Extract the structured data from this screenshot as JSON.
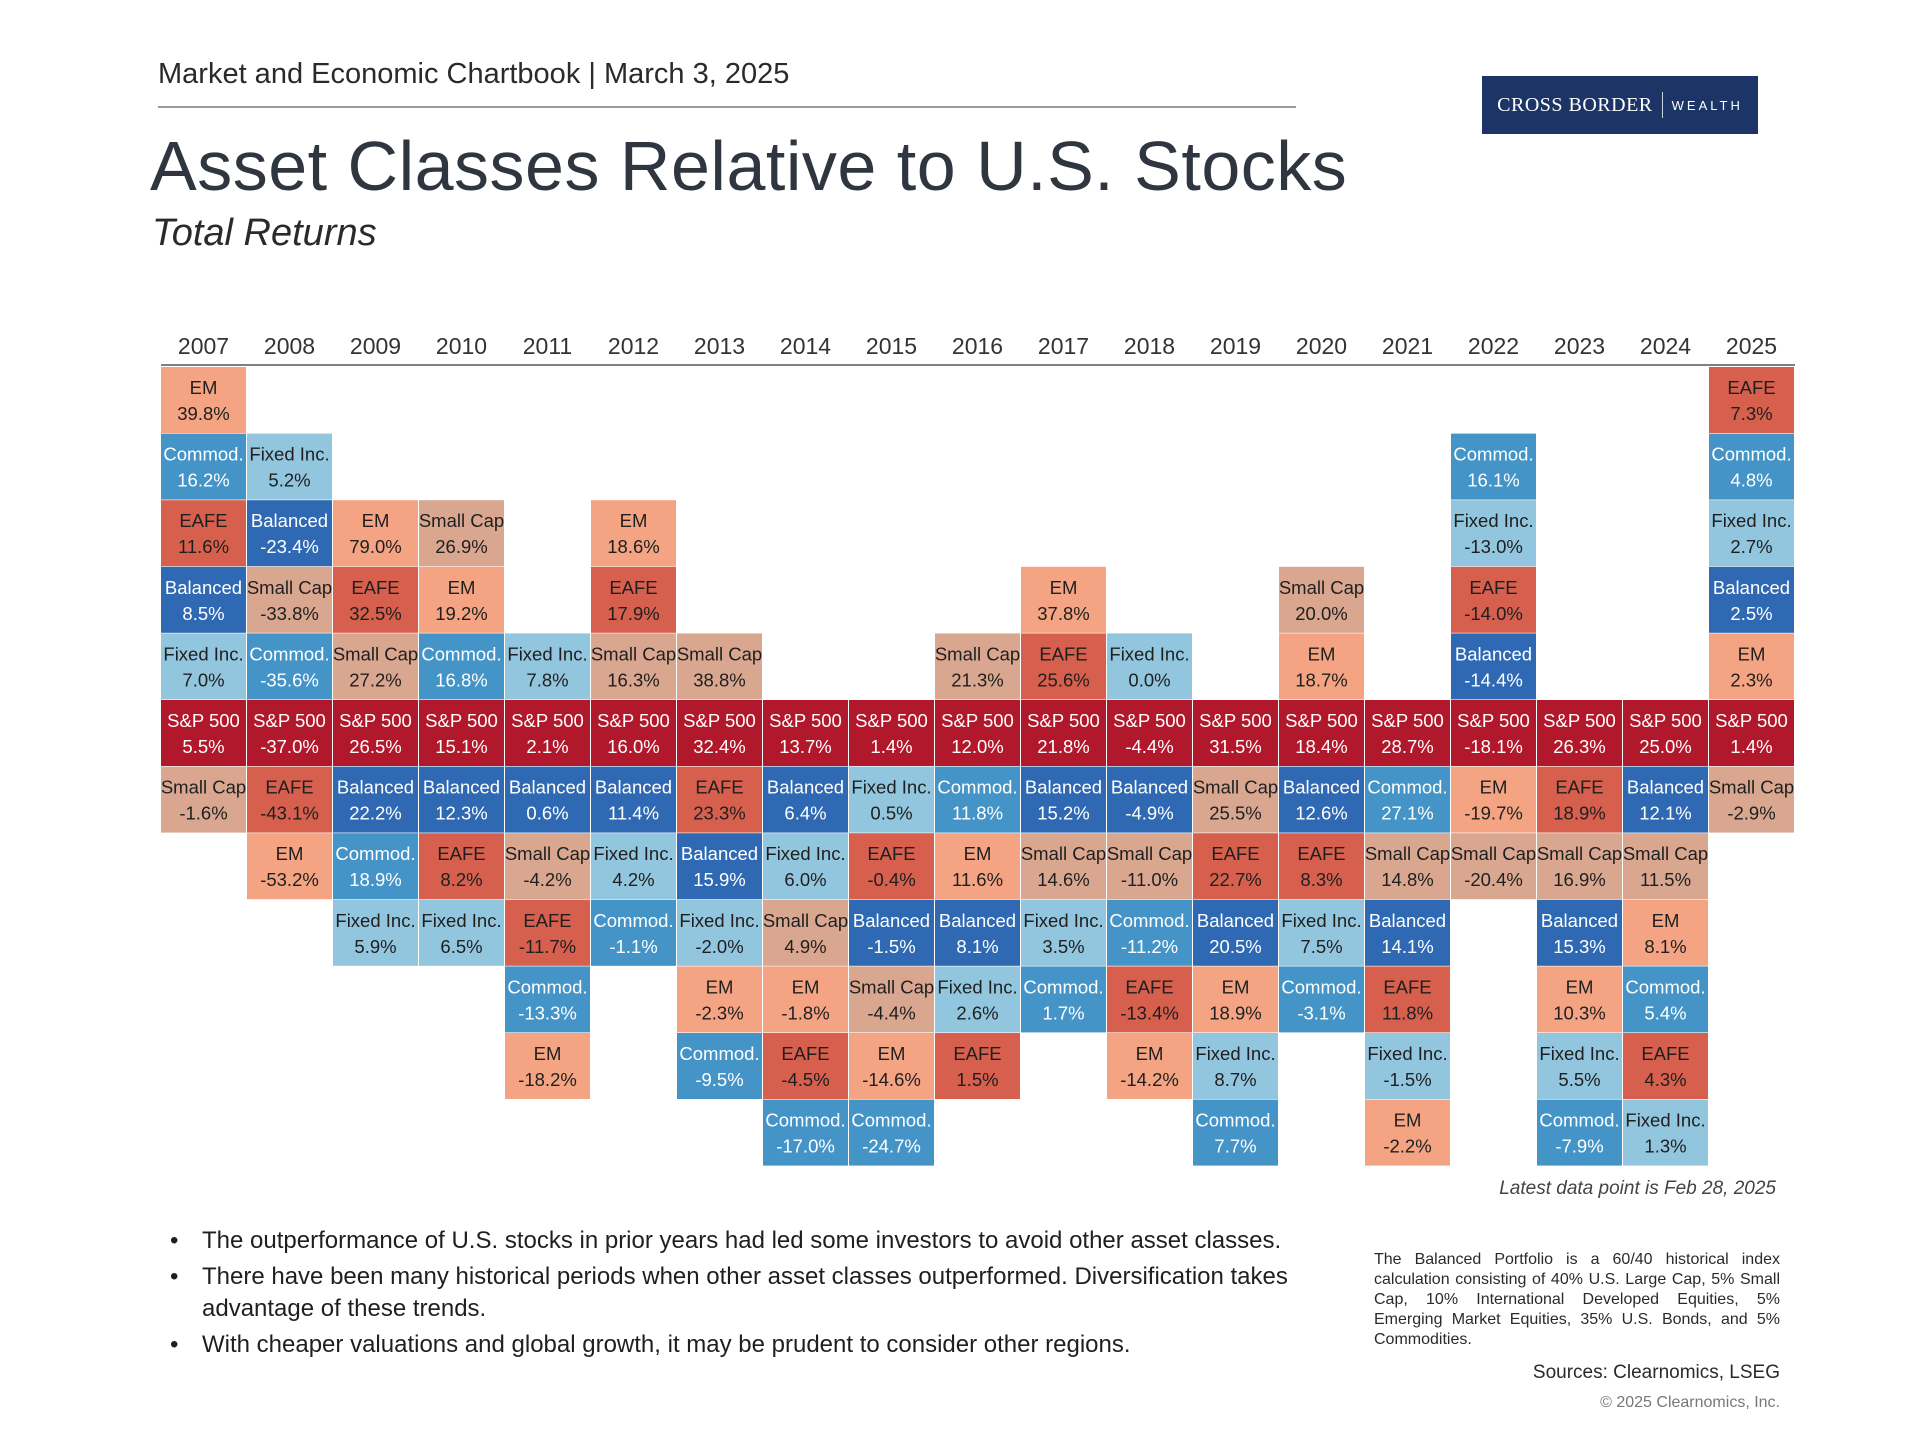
{
  "header": {
    "chartbook_line": "Market and Economic Chartbook | March 3, 2025",
    "title": "Asset Classes Relative to U.S. Stocks",
    "subtitle": "Total Returns"
  },
  "logo": {
    "brand_left": "CROSS BORDER",
    "brand_right": "WEALTH"
  },
  "colors": {
    "EM": "#f4a482",
    "Commod.": "#4494c8",
    "EAFE": "#d6604d",
    "Fixed Inc.": "#92c5de",
    "Balanced": "#2f69b3",
    "Small Cap": "#d9a690",
    "S&P 500": "#b2182b",
    "header_rule": "#7f7f7f"
  },
  "chart_data": {
    "type": "table",
    "title": "Asset Classes Relative to U.S. Stocks",
    "description": "Annual total returns ranked by asset class; S&P 500 row centered, classes above outperformed, below underperformed.",
    "benchmark": "S&P 500",
    "years": [
      {
        "year": "2007",
        "above": [
          {
            "name": "EM",
            "value": "39.8%"
          },
          {
            "name": "Commod.",
            "value": "16.2%"
          },
          {
            "name": "EAFE",
            "value": "11.6%"
          },
          {
            "name": "Balanced",
            "value": "8.5%"
          },
          {
            "name": "Fixed Inc.",
            "value": "7.0%"
          }
        ],
        "sp500": "5.5%",
        "below": [
          {
            "name": "Small Cap",
            "value": "-1.6%"
          }
        ]
      },
      {
        "year": "2008",
        "above": [
          {
            "name": "Fixed Inc.",
            "value": "5.2%"
          },
          {
            "name": "Balanced",
            "value": "-23.4%"
          },
          {
            "name": "Small Cap",
            "value": "-33.8%"
          },
          {
            "name": "Commod.",
            "value": "-35.6%"
          }
        ],
        "sp500": "-37.0%",
        "below": [
          {
            "name": "EAFE",
            "value": "-43.1%"
          },
          {
            "name": "EM",
            "value": "-53.2%"
          }
        ]
      },
      {
        "year": "2009",
        "above": [
          {
            "name": "EM",
            "value": "79.0%"
          },
          {
            "name": "EAFE",
            "value": "32.5%"
          },
          {
            "name": "Small Cap",
            "value": "27.2%"
          }
        ],
        "sp500": "26.5%",
        "below": [
          {
            "name": "Balanced",
            "value": "22.2%"
          },
          {
            "name": "Commod.",
            "value": "18.9%"
          },
          {
            "name": "Fixed Inc.",
            "value": "5.9%"
          }
        ]
      },
      {
        "year": "2010",
        "above": [
          {
            "name": "Small Cap",
            "value": "26.9%"
          },
          {
            "name": "EM",
            "value": "19.2%"
          },
          {
            "name": "Commod.",
            "value": "16.8%"
          }
        ],
        "sp500": "15.1%",
        "below": [
          {
            "name": "Balanced",
            "value": "12.3%"
          },
          {
            "name": "EAFE",
            "value": "8.2%"
          },
          {
            "name": "Fixed Inc.",
            "value": "6.5%"
          }
        ]
      },
      {
        "year": "2011",
        "above": [
          {
            "name": "Fixed Inc.",
            "value": "7.8%"
          }
        ],
        "sp500": "2.1%",
        "below": [
          {
            "name": "Balanced",
            "value": "0.6%"
          },
          {
            "name": "Small Cap",
            "value": "-4.2%"
          },
          {
            "name": "EAFE",
            "value": "-11.7%"
          },
          {
            "name": "Commod.",
            "value": "-13.3%"
          },
          {
            "name": "EM",
            "value": "-18.2%"
          }
        ]
      },
      {
        "year": "2012",
        "above": [
          {
            "name": "EM",
            "value": "18.6%"
          },
          {
            "name": "EAFE",
            "value": "17.9%"
          },
          {
            "name": "Small Cap",
            "value": "16.3%"
          }
        ],
        "sp500": "16.0%",
        "below": [
          {
            "name": "Balanced",
            "value": "11.4%"
          },
          {
            "name": "Fixed Inc.",
            "value": "4.2%"
          },
          {
            "name": "Commod.",
            "value": "-1.1%"
          }
        ]
      },
      {
        "year": "2013",
        "above": [
          {
            "name": "Small Cap",
            "value": "38.8%"
          }
        ],
        "sp500": "32.4%",
        "below": [
          {
            "name": "EAFE",
            "value": "23.3%"
          },
          {
            "name": "Balanced",
            "value": "15.9%"
          },
          {
            "name": "Fixed Inc.",
            "value": "-2.0%"
          },
          {
            "name": "EM",
            "value": "-2.3%"
          },
          {
            "name": "Commod.",
            "value": "-9.5%"
          }
        ]
      },
      {
        "year": "2014",
        "above": [],
        "sp500": "13.7%",
        "below": [
          {
            "name": "Balanced",
            "value": "6.4%"
          },
          {
            "name": "Fixed Inc.",
            "value": "6.0%"
          },
          {
            "name": "Small Cap",
            "value": "4.9%"
          },
          {
            "name": "EM",
            "value": "-1.8%"
          },
          {
            "name": "EAFE",
            "value": "-4.5%"
          },
          {
            "name": "Commod.",
            "value": "-17.0%"
          }
        ]
      },
      {
        "year": "2015",
        "above": [],
        "sp500": "1.4%",
        "below": [
          {
            "name": "Fixed Inc.",
            "value": "0.5%"
          },
          {
            "name": "EAFE",
            "value": "-0.4%"
          },
          {
            "name": "Balanced",
            "value": "-1.5%"
          },
          {
            "name": "Small Cap",
            "value": "-4.4%"
          },
          {
            "name": "EM",
            "value": "-14.6%"
          },
          {
            "name": "Commod.",
            "value": "-24.7%"
          }
        ]
      },
      {
        "year": "2016",
        "above": [
          {
            "name": "Small Cap",
            "value": "21.3%"
          }
        ],
        "sp500": "12.0%",
        "below": [
          {
            "name": "Commod.",
            "value": "11.8%"
          },
          {
            "name": "EM",
            "value": "11.6%"
          },
          {
            "name": "Balanced",
            "value": "8.1%"
          },
          {
            "name": "Fixed Inc.",
            "value": "2.6%"
          },
          {
            "name": "EAFE",
            "value": "1.5%"
          }
        ]
      },
      {
        "year": "2017",
        "above": [
          {
            "name": "EM",
            "value": "37.8%"
          },
          {
            "name": "EAFE",
            "value": "25.6%"
          }
        ],
        "sp500": "21.8%",
        "below": [
          {
            "name": "Balanced",
            "value": "15.2%"
          },
          {
            "name": "Small Cap",
            "value": "14.6%"
          },
          {
            "name": "Fixed Inc.",
            "value": "3.5%"
          },
          {
            "name": "Commod.",
            "value": "1.7%"
          }
        ]
      },
      {
        "year": "2018",
        "above": [
          {
            "name": "Fixed Inc.",
            "value": "0.0%"
          }
        ],
        "sp500": "-4.4%",
        "below": [
          {
            "name": "Balanced",
            "value": "-4.9%"
          },
          {
            "name": "Small Cap",
            "value": "-11.0%"
          },
          {
            "name": "Commod.",
            "value": "-11.2%"
          },
          {
            "name": "EAFE",
            "value": "-13.4%"
          },
          {
            "name": "EM",
            "value": "-14.2%"
          }
        ]
      },
      {
        "year": "2019",
        "above": [],
        "sp500": "31.5%",
        "below": [
          {
            "name": "Small Cap",
            "value": "25.5%"
          },
          {
            "name": "EAFE",
            "value": "22.7%"
          },
          {
            "name": "Balanced",
            "value": "20.5%"
          },
          {
            "name": "EM",
            "value": "18.9%"
          },
          {
            "name": "Fixed Inc.",
            "value": "8.7%"
          },
          {
            "name": "Commod.",
            "value": "7.7%"
          }
        ]
      },
      {
        "year": "2020",
        "above": [
          {
            "name": "Small Cap",
            "value": "20.0%"
          },
          {
            "name": "EM",
            "value": "18.7%"
          }
        ],
        "sp500": "18.4%",
        "below": [
          {
            "name": "Balanced",
            "value": "12.6%"
          },
          {
            "name": "EAFE",
            "value": "8.3%"
          },
          {
            "name": "Fixed Inc.",
            "value": "7.5%"
          },
          {
            "name": "Commod.",
            "value": "-3.1%"
          }
        ]
      },
      {
        "year": "2021",
        "above": [],
        "sp500": "28.7%",
        "below": [
          {
            "name": "Commod.",
            "value": "27.1%"
          },
          {
            "name": "Small Cap",
            "value": "14.8%"
          },
          {
            "name": "Balanced",
            "value": "14.1%"
          },
          {
            "name": "EAFE",
            "value": "11.8%"
          },
          {
            "name": "Fixed Inc.",
            "value": "-1.5%"
          },
          {
            "name": "EM",
            "value": "-2.2%"
          }
        ]
      },
      {
        "year": "2022",
        "above": [
          {
            "name": "Commod.",
            "value": "16.1%"
          },
          {
            "name": "Fixed Inc.",
            "value": "-13.0%"
          },
          {
            "name": "EAFE",
            "value": "-14.0%"
          },
          {
            "name": "Balanced",
            "value": "-14.4%"
          }
        ],
        "sp500": "-18.1%",
        "below": [
          {
            "name": "EM",
            "value": "-19.7%"
          },
          {
            "name": "Small Cap",
            "value": "-20.4%"
          }
        ]
      },
      {
        "year": "2023",
        "above": [],
        "sp500": "26.3%",
        "below": [
          {
            "name": "EAFE",
            "value": "18.9%"
          },
          {
            "name": "Small Cap",
            "value": "16.9%"
          },
          {
            "name": "Balanced",
            "value": "15.3%"
          },
          {
            "name": "EM",
            "value": "10.3%"
          },
          {
            "name": "Fixed Inc.",
            "value": "5.5%"
          },
          {
            "name": "Commod.",
            "value": "-7.9%"
          }
        ]
      },
      {
        "year": "2024",
        "above": [],
        "sp500": "25.0%",
        "below": [
          {
            "name": "Balanced",
            "value": "12.1%"
          },
          {
            "name": "Small Cap",
            "value": "11.5%"
          },
          {
            "name": "EM",
            "value": "8.1%"
          },
          {
            "name": "Commod.",
            "value": "5.4%"
          },
          {
            "name": "EAFE",
            "value": "4.3%"
          },
          {
            "name": "Fixed Inc.",
            "value": "1.3%"
          }
        ]
      },
      {
        "year": "2025",
        "above": [
          {
            "name": "EAFE",
            "value": "7.3%"
          },
          {
            "name": "Commod.",
            "value": "4.8%"
          },
          {
            "name": "Fixed Inc.",
            "value": "2.7%"
          },
          {
            "name": "Balanced",
            "value": "2.5%"
          },
          {
            "name": "EM",
            "value": "2.3%"
          }
        ],
        "sp500": "1.4%",
        "below": [
          {
            "name": "Small Cap",
            "value": "-2.9%"
          }
        ]
      }
    ]
  },
  "latest_note": "Latest data point is Feb 28, 2025",
  "bullets": [
    "The outperformance of U.S. stocks in prior years had led some investors to avoid other asset classes.",
    "There have been many historical periods when other asset classes outperformed. Diversification takes advantage of these trends.",
    "With cheaper valuations and global growth, it may be prudent to consider other regions."
  ],
  "footnote": "The Balanced Portfolio is a 60/40 historical index calculation consisting of 40% U.S. Large Cap, 5% Small Cap, 10% International Developed Equities, 5% Emerging Market Equities, 35% U.S. Bonds, and 5% Commodities.",
  "sources": "Sources: Clearnomics, LSEG",
  "copyright": "© 2025 Clearnomics, Inc."
}
